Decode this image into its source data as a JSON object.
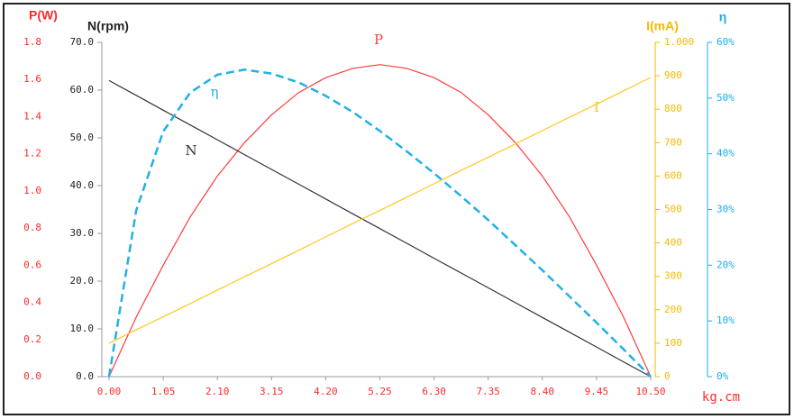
{
  "chart_data": {
    "type": "line",
    "x_label": "kg.cm",
    "xlim": [
      0,
      10.5
    ],
    "xticks": [
      {
        "value": 0,
        "label": "0.00"
      },
      {
        "value": 1.05,
        "label": "1.05"
      },
      {
        "value": 2.1,
        "label": "2.10"
      },
      {
        "value": 3.15,
        "label": "3.15"
      },
      {
        "value": 4.2,
        "label": "4.20"
      },
      {
        "value": 5.25,
        "label": "5.25"
      },
      {
        "value": 6.3,
        "label": "6.30"
      },
      {
        "value": 7.35,
        "label": "7.35"
      },
      {
        "value": 8.4,
        "label": "8.40"
      },
      {
        "value": 9.45,
        "label": "9.45"
      },
      {
        "value": 10.5,
        "label": "10.50"
      }
    ],
    "axes": [
      {
        "label": "P(W)",
        "color": "#ff2a2a",
        "lim": [
          0,
          1.8
        ],
        "ticks": [
          {
            "value": 0,
            "label": "0.0"
          },
          0.2,
          0.4,
          0.6,
          0.8,
          {
            "value": 1,
            "label": "1.0"
          },
          1.2,
          1.4,
          1.6,
          1.8
        ]
      },
      {
        "label": "N(rpm)",
        "color": "#222222",
        "lim": [
          0,
          70
        ],
        "ticks": [
          {
            "value": 0,
            "label": "0.0"
          },
          {
            "value": 10,
            "label": "10.0"
          },
          {
            "value": 20,
            "label": "20.0"
          },
          {
            "value": 30,
            "label": "30.0"
          },
          {
            "value": 40,
            "label": "40.0"
          },
          {
            "value": 50,
            "label": "50.0"
          },
          {
            "value": 60,
            "label": "60.0"
          },
          {
            "value": 70,
            "label": "70.0"
          }
        ]
      },
      {
        "label": "I(mA)",
        "color": "#f5b800",
        "lim": [
          0,
          1000
        ],
        "ticks": [
          0,
          100,
          200,
          300,
          400,
          500,
          600,
          700,
          800,
          900,
          {
            "value": 1000,
            "label": "1.000"
          }
        ]
      },
      {
        "label": "η",
        "color": "#1ab0e8",
        "lim": [
          0,
          60
        ],
        "ticks": [
          {
            "value": 0,
            "label": "0%"
          },
          {
            "value": 10,
            "label": "10%"
          },
          {
            "value": 20,
            "label": "20%"
          },
          {
            "value": 30,
            "label": "30%"
          },
          {
            "value": 40,
            "label": "40%"
          },
          {
            "value": 50,
            "label": "50%"
          },
          {
            "value": 60,
            "label": "60%"
          }
        ]
      }
    ],
    "x": [
      0,
      0.525,
      1.05,
      1.575,
      2.1,
      2.625,
      3.15,
      3.675,
      4.2,
      4.725,
      5.25,
      5.775,
      6.3,
      6.825,
      7.35,
      7.875,
      8.4,
      8.925,
      9.45,
      9.975,
      10.5
    ],
    "series": [
      {
        "name": "P",
        "color": "#ff3b3b",
        "axis": 0,
        "dashed": false,
        "values": [
          0,
          0.32,
          0.6,
          0.86,
          1.08,
          1.26,
          1.41,
          1.53,
          1.61,
          1.66,
          1.68,
          1.66,
          1.61,
          1.53,
          1.41,
          1.26,
          1.08,
          0.86,
          0.6,
          0.32,
          0
        ]
      },
      {
        "name": "N",
        "color": "#333333",
        "axis": 1,
        "dashed": false,
        "values": [
          62,
          58.9,
          55.8,
          52.7,
          49.6,
          46.5,
          43.4,
          40.3,
          37.2,
          34.1,
          31.0,
          27.9,
          24.8,
          21.7,
          18.6,
          15.5,
          12.4,
          9.3,
          6.2,
          3.1,
          0
        ]
      },
      {
        "name": "η",
        "color": "#22b0e8",
        "axis": 3,
        "dashed": true,
        "values": [
          0,
          29.8,
          44.0,
          51.0,
          54.2,
          55.1,
          54.4,
          52.8,
          50.4,
          47.5,
          44.1,
          40.4,
          36.5,
          32.4,
          28.1,
          23.6,
          19.1,
          14.4,
          9.7,
          4.9,
          0
        ]
      },
      {
        "name": "I",
        "color": "#ffc820",
        "axis": 2,
        "dashed": false,
        "values": [
          100,
          140,
          179,
          219,
          259,
          299,
          338,
          378,
          418,
          458,
          497,
          537,
          577,
          617,
          656,
          696,
          736,
          776,
          815,
          855,
          895
        ]
      }
    ]
  }
}
